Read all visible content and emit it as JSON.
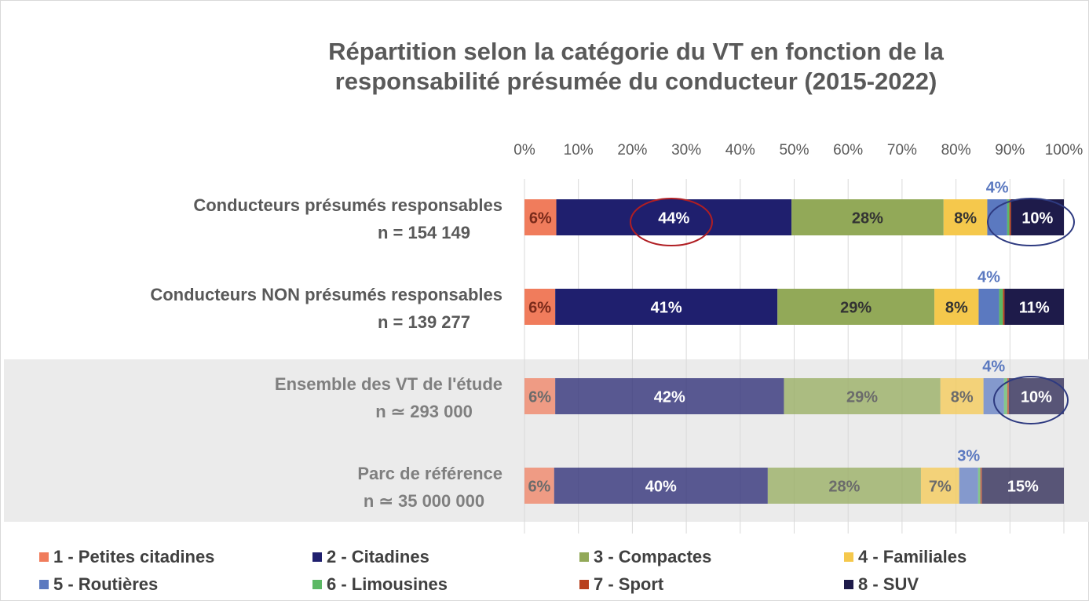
{
  "chart_data": {
    "type": "stacked_bar_horizontal",
    "title": [
      "Répartition selon la catégorie du VT en fonction de la",
      "responsabilité présumée du conducteur (2015-2022)"
    ],
    "categories": [
      "Conducteurs présumés responsables",
      "Conducteurs NON présumés responsables",
      "Ensemble des VT de l'étude",
      "Parc de référence"
    ],
    "category_sublabels": [
      "n = 154 149",
      "n = 139 277",
      "n ≃ 293 000",
      "n ≃ 35 000 000"
    ],
    "xlim": [
      0,
      100
    ],
    "xticks": [
      {
        "value": 0,
        "label": "0%"
      },
      {
        "value": 10,
        "label": "10%"
      },
      {
        "value": 20,
        "label": "20%"
      },
      {
        "value": 30,
        "label": "30%"
      },
      {
        "value": 40,
        "label": "40%"
      },
      {
        "value": 50,
        "label": "50%"
      },
      {
        "value": 60,
        "label": "60%"
      },
      {
        "value": 70,
        "label": "70%"
      },
      {
        "value": 80,
        "label": "80%"
      },
      {
        "value": 90,
        "label": "90%"
      },
      {
        "value": 100,
        "label": "100%"
      }
    ],
    "grid": true,
    "legend": "bottom",
    "series": [
      {
        "name": "1 - Petites citadines",
        "color": "#f07c5c",
        "label_color": "#7a2a1a",
        "values": [
          5.9,
          5.7,
          5.7,
          5.5
        ],
        "value_labels": [
          "6%",
          "6%",
          "6%",
          "6%"
        ]
      },
      {
        "name": "2 - Citadines",
        "color": "#1f1f6e",
        "label_color": "#ffffff",
        "values": [
          43.6,
          41.2,
          42.4,
          39.6
        ],
        "value_labels": [
          "44%",
          "41%",
          "42%",
          "40%"
        ]
      },
      {
        "name": "3 - Compactes",
        "color": "#92a958",
        "label_color": "#333333",
        "values": [
          28.2,
          29.1,
          29.0,
          28.4
        ],
        "value_labels": [
          "28%",
          "29%",
          "29%",
          "28%"
        ]
      },
      {
        "name": "4 - Familiales",
        "color": "#f5c84c",
        "label_color": "#333333",
        "values": [
          8.1,
          8.2,
          8.0,
          7.1
        ],
        "value_labels": [
          "8%",
          "8%",
          "8%",
          "7%"
        ]
      },
      {
        "name": "5 - Routières",
        "color": "#5b79c0",
        "label_color": "#5b79c0",
        "label_position": "above",
        "values": [
          3.7,
          3.8,
          3.8,
          3.5
        ],
        "value_labels": [
          "4%",
          "4%",
          "4%",
          "3%"
        ]
      },
      {
        "name": "6 - Limousines",
        "color": "#5cb865",
        "values": [
          0.4,
          0.7,
          0.6,
          0.4
        ]
      },
      {
        "name": "7 - Sport",
        "color": "#b8401e",
        "values": [
          0.3,
          0.3,
          0.3,
          0.3
        ]
      },
      {
        "name": "8 - SUV",
        "color": "#1e1b4a",
        "label_color": "#ffffff",
        "values": [
          9.8,
          11.0,
          10.2,
          15.2
        ],
        "value_labels": [
          "10%",
          "11%",
          "10%",
          "15%"
        ]
      }
    ]
  }
}
